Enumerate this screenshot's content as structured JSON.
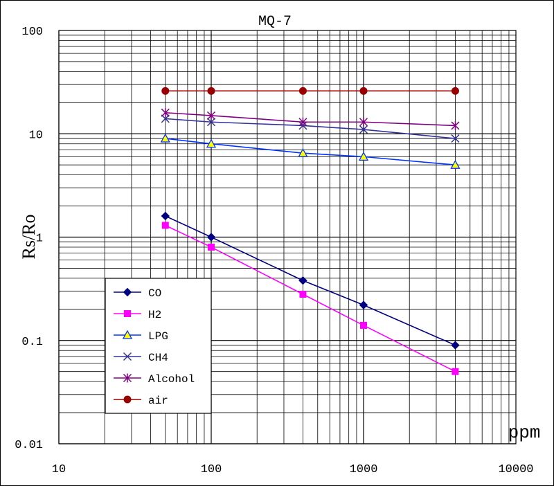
{
  "chart_data": {
    "type": "line",
    "title": "MQ-7",
    "xlabel": "ppm",
    "ylabel": "Rs/Ro",
    "xscale": "log",
    "yscale": "log",
    "xlim": [
      10,
      10000
    ],
    "ylim": [
      0.01,
      100
    ],
    "grid": true,
    "legend_position": "bottom-left",
    "x_tick_labels": [
      "10",
      "100",
      "1000",
      "10000"
    ],
    "y_tick_labels": [
      "100",
      "10",
      "1",
      "0.1",
      "0.01"
    ],
    "series": [
      {
        "name": "CO",
        "color": "#000080",
        "marker": "diamond",
        "x": [
          50,
          100,
          400,
          1000,
          4000
        ],
        "y": [
          1.6,
          1.0,
          0.38,
          0.22,
          0.09
        ]
      },
      {
        "name": "H2",
        "color": "#ff00ff",
        "marker": "square",
        "x": [
          50,
          100,
          400,
          1000,
          4000
        ],
        "y": [
          1.3,
          0.8,
          0.28,
          0.14,
          0.05
        ]
      },
      {
        "name": "LPG",
        "color": "#0033ff",
        "marker": "triangle",
        "x": [
          50,
          100,
          400,
          1000,
          4000
        ],
        "y": [
          9.0,
          8.0,
          6.5,
          6.0,
          5.0
        ]
      },
      {
        "name": "CH4",
        "color": "#333399",
        "marker": "x",
        "x": [
          50,
          100,
          400,
          1000,
          4000
        ],
        "y": [
          14,
          13,
          12,
          11,
          9
        ]
      },
      {
        "name": "Alcohol",
        "color": "#800080",
        "marker": "star",
        "x": [
          50,
          100,
          400,
          1000,
          4000
        ],
        "y": [
          16,
          15,
          13,
          13,
          12
        ]
      },
      {
        "name": "air",
        "color": "#990000",
        "marker": "circle",
        "x": [
          50,
          100,
          400,
          1000,
          4000
        ],
        "y": [
          26,
          26,
          26,
          26,
          26
        ]
      }
    ]
  }
}
